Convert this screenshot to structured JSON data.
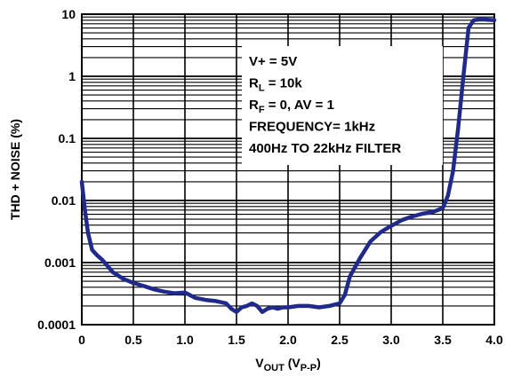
{
  "chart_data": {
    "type": "line",
    "title": "",
    "xlabel": {
      "main": "V",
      "sub1": "OUT",
      "mid": " (V",
      "sub2": "P-P",
      "end": ")"
    },
    "ylabel": "THD + NOISE (%)",
    "x_scale": "linear",
    "y_scale": "log",
    "xlim": [
      0,
      4.0
    ],
    "ylim": [
      0.0001,
      10
    ],
    "x_ticks": [
      0,
      0.5,
      1.0,
      1.5,
      2.0,
      2.5,
      3.0,
      3.5,
      4.0
    ],
    "x_tick_labels": [
      "0",
      "0.5",
      "1.0",
      "1.5",
      "2.0",
      "2.5",
      "3.0",
      "3.5",
      "4.0"
    ],
    "y_ticks": [
      0.0001,
      0.001,
      0.01,
      0.1,
      1,
      10
    ],
    "y_tick_labels": [
      "0.0001",
      "0.001",
      "0.01",
      "0.1",
      "1",
      "10"
    ],
    "grid": true,
    "line_color": "#1f2a8a",
    "annotations": [
      {
        "main": "V+ = 5V"
      },
      {
        "main": "R",
        "sub": "L",
        "rest": " = 10k"
      },
      {
        "main": "R",
        "sub": "F",
        "rest": " = 0, AV = 1"
      },
      {
        "main": "FREQUENCY= 1kHz"
      },
      {
        "main": "400Hz TO 22kHz FILTER"
      }
    ],
    "series": [
      {
        "x": [
          0,
          0.03,
          0.06,
          0.1,
          0.15,
          0.2,
          0.3,
          0.4,
          0.5,
          0.6,
          0.7,
          0.8,
          0.9,
          1.0,
          1.1,
          1.2,
          1.3,
          1.35,
          1.4,
          1.45,
          1.5,
          1.55,
          1.6,
          1.65,
          1.7,
          1.75,
          1.8,
          1.85,
          1.9,
          1.95,
          2.0,
          2.1,
          2.2,
          2.3,
          2.4,
          2.45,
          2.5,
          2.55,
          2.6,
          2.7,
          2.8,
          2.9,
          3.0,
          3.1,
          3.2,
          3.3,
          3.4,
          3.5,
          3.55,
          3.6,
          3.65,
          3.7,
          3.75,
          3.8,
          3.85,
          3.9,
          4.0
        ],
        "y": [
          0.02,
          0.007,
          0.003,
          0.0016,
          0.0013,
          0.0011,
          0.0007,
          0.00055,
          0.00047,
          0.00042,
          0.00037,
          0.00034,
          0.00032,
          0.00033,
          0.00027,
          0.00025,
          0.00024,
          0.00023,
          0.00022,
          0.00018,
          0.00016,
          0.00019,
          0.0002,
          0.00022,
          0.0002,
          0.00016,
          0.00018,
          0.00019,
          0.00018,
          0.00019,
          0.00019,
          0.0002,
          0.0002,
          0.00019,
          0.0002,
          0.00021,
          0.00022,
          0.0003,
          0.0006,
          0.0012,
          0.0022,
          0.0031,
          0.0039,
          0.0048,
          0.0055,
          0.0061,
          0.0065,
          0.0075,
          0.012,
          0.03,
          0.15,
          1.0,
          6.0,
          8.0,
          8.2,
          8.2,
          8.0
        ]
      }
    ]
  }
}
